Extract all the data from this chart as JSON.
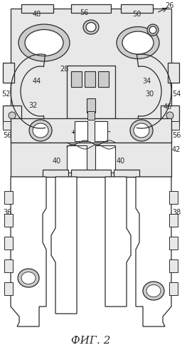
{
  "title": "ФИГ. 2",
  "title_fontsize": 11,
  "bg_color": "#ffffff",
  "line_color": "#2a2a2a",
  "lw": 0.9,
  "fig_width": 2.56,
  "fig_height": 4.98,
  "dpi": 100
}
